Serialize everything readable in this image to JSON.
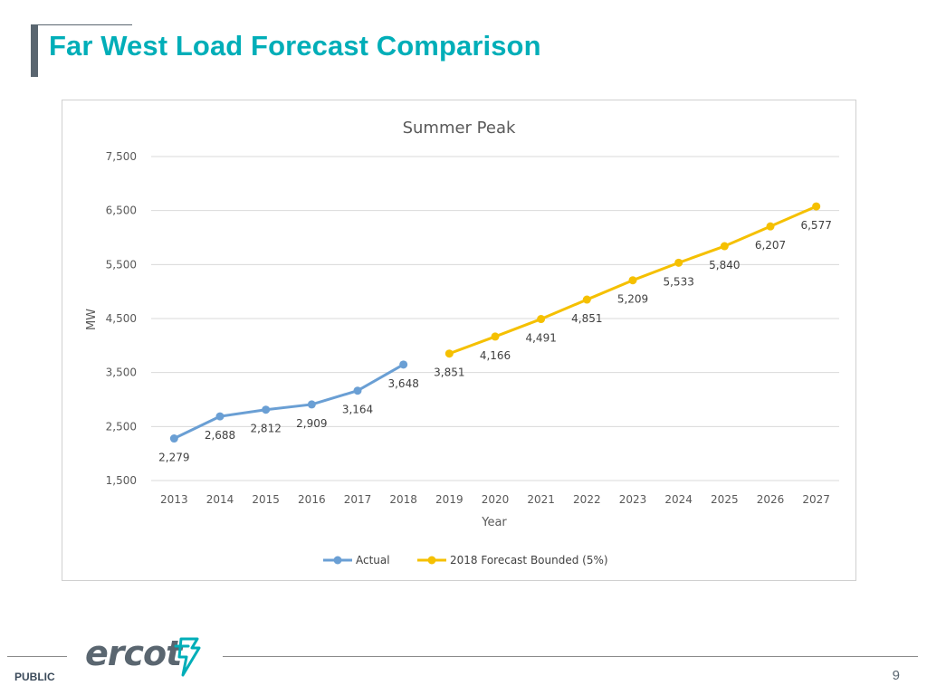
{
  "slide": {
    "title": "Far West Load Forecast Comparison",
    "footer_label": "PUBLIC",
    "page_number": "9",
    "logo_text": "ercot"
  },
  "colors": {
    "title": "#00aeb8",
    "actual": "#6a9fd4",
    "forecast": "#f5c000"
  },
  "chart_data": {
    "type": "line",
    "title": "Summer Peak",
    "xlabel": "Year",
    "ylabel": "MW",
    "ylim": [
      1500,
      7500
    ],
    "yticks": [
      1500,
      2500,
      3500,
      4500,
      5500,
      6500,
      7500
    ],
    "ytick_labels": [
      "1,500",
      "2,500",
      "3,500",
      "4,500",
      "5,500",
      "6,500",
      "7,500"
    ],
    "categories": [
      "2013",
      "2014",
      "2015",
      "2016",
      "2017",
      "2018",
      "2019",
      "2020",
      "2021",
      "2022",
      "2023",
      "2024",
      "2025",
      "2026",
      "2027"
    ],
    "grid": true,
    "legend_position": "bottom",
    "series": [
      {
        "name": "Actual",
        "color": "#6a9fd4",
        "x": [
          "2013",
          "2014",
          "2015",
          "2016",
          "2017",
          "2018"
        ],
        "values": [
          2279,
          2688,
          2812,
          2909,
          3164,
          3648
        ],
        "labels": [
          "2,279",
          "2,688",
          "2,812",
          "2,909",
          "3,164",
          "3,648"
        ]
      },
      {
        "name": "2018 Forecast Bounded (5%)",
        "color": "#f5c000",
        "x": [
          "2019",
          "2020",
          "2021",
          "2022",
          "2023",
          "2024",
          "2025",
          "2026",
          "2027"
        ],
        "values": [
          3851,
          4166,
          4491,
          4851,
          5209,
          5533,
          5840,
          6207,
          6577
        ],
        "labels": [
          "3,851",
          "4,166",
          "4,491",
          "4,851",
          "5,209",
          "5,533",
          "5,840",
          "6,207",
          "6,577"
        ]
      }
    ]
  }
}
